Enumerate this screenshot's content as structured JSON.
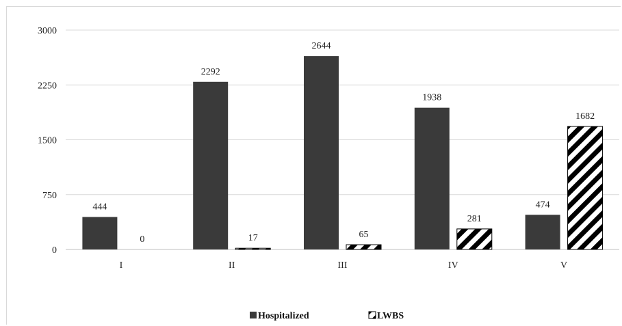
{
  "chart_data": {
    "type": "bar",
    "categories": [
      "I",
      "II",
      "III",
      "IV",
      "V"
    ],
    "series": [
      {
        "name": "Hospitalized",
        "values": [
          444,
          2292,
          2644,
          1938,
          474
        ],
        "color": "#3a3a3a",
        "pattern": "solid"
      },
      {
        "name": "LWBS",
        "values": [
          0,
          17,
          65,
          281,
          1682
        ],
        "color": "#000000",
        "pattern": "diagonal-stripes"
      }
    ],
    "ylim": [
      0,
      3000
    ],
    "yticks": [
      "0",
      "750",
      "1500",
      "2250",
      "3000"
    ],
    "grid": true,
    "legend_position": "bottom"
  }
}
